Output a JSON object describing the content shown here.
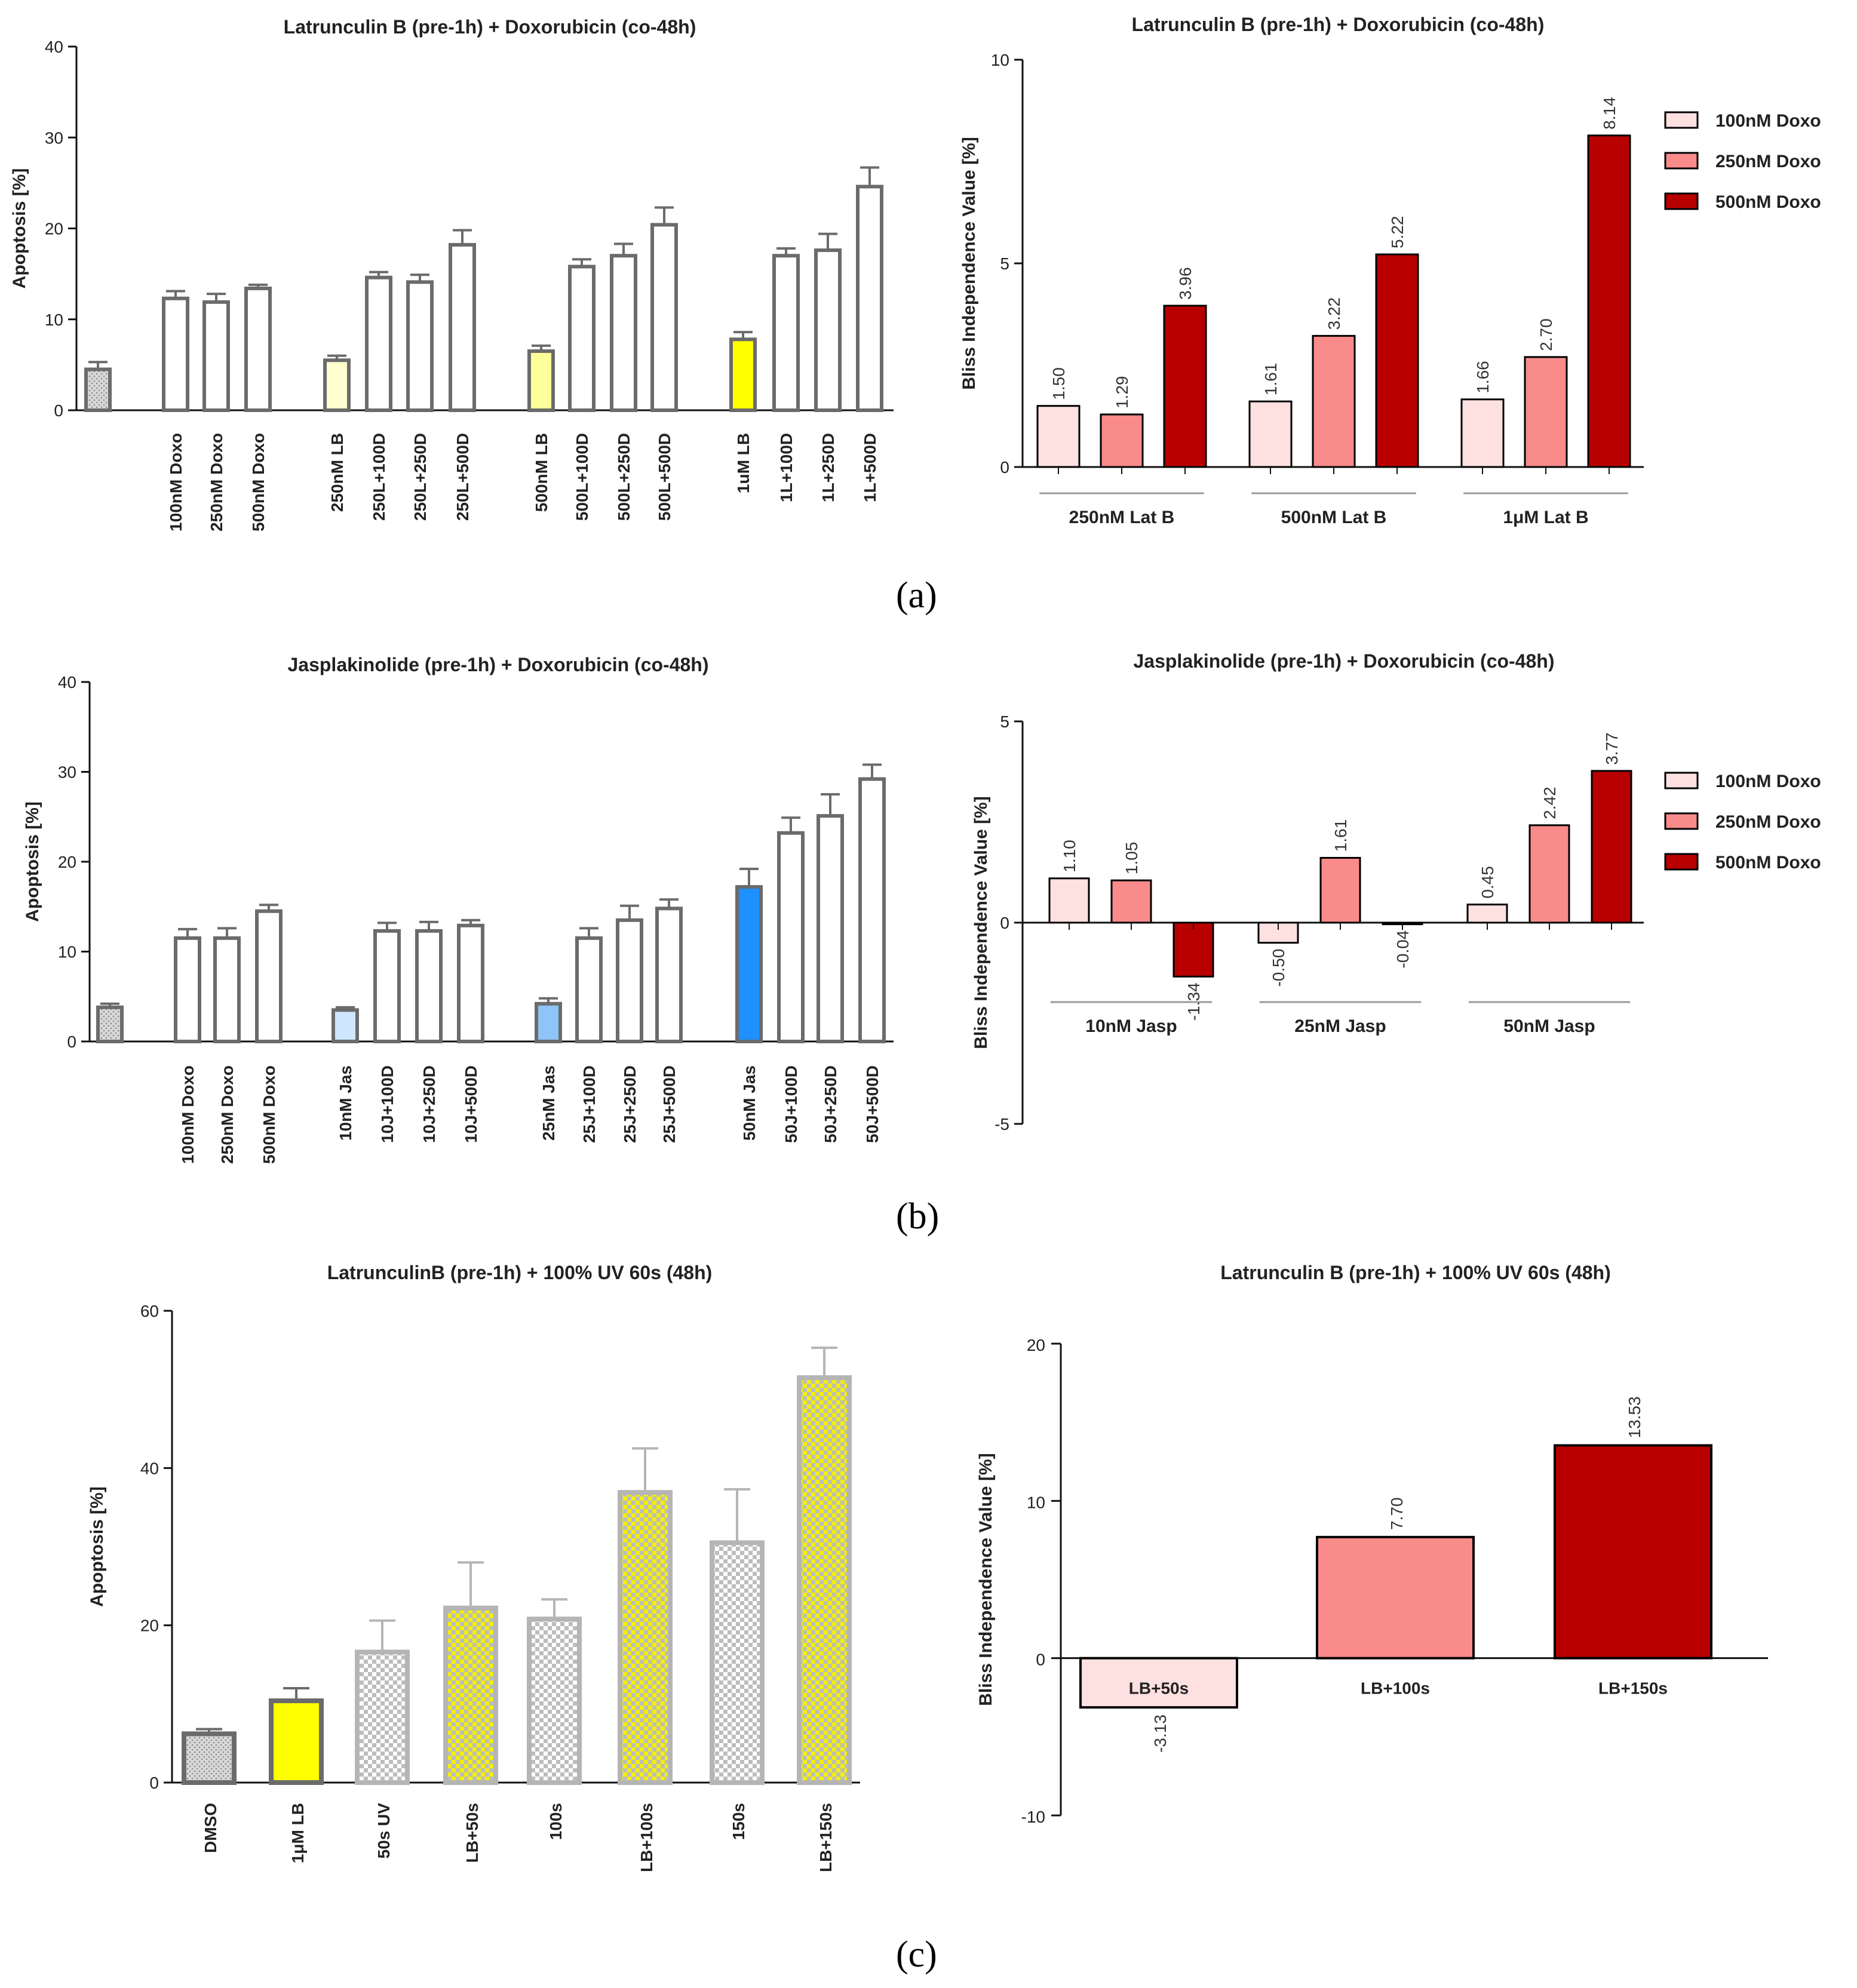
{
  "colors": {
    "doxo100": "#fde0e0",
    "doxo250": "#f98b8b",
    "doxo500": "#b80000",
    "axis": "#111111",
    "bar_outline": "#6b6b6b",
    "lb_250": "#ffffd0",
    "lb_500": "#ffff99",
    "lb_1u": "#ffff00",
    "jas_10": "#cfe6ff",
    "jas_25": "#8ec4f7",
    "jas_50": "#1e90ff"
  },
  "panels": {
    "a": "(a)",
    "b": "(b)",
    "c": "(c)"
  },
  "chart_data": [
    {
      "id": "a-left",
      "type": "bar",
      "title": "Latrunculin B (pre-1h) +  Doxorubicin (co-48h)",
      "ylabel": "Apoptosis [%]",
      "ylim": [
        0,
        40
      ],
      "yticks": [
        0,
        10,
        20,
        30,
        40
      ],
      "categories": [
        "",
        "100nM Doxo",
        "250nM Doxo",
        "500nM Doxo",
        "250nM LB",
        "250L+100D",
        "250L+250D",
        "250L+500D",
        "500nM LB",
        "500L+100D",
        "500L+250D",
        "500L+500D",
        "1uM LB",
        "1L+100D",
        "1L+250D",
        "1L+500D"
      ],
      "values": [
        4.5,
        12.3,
        11.9,
        13.4,
        5.5,
        14.6,
        14.1,
        18.2,
        6.5,
        15.8,
        17.0,
        20.4,
        7.8,
        17.0,
        17.6,
        24.6
      ],
      "errors": [
        0.8,
        0.8,
        0.9,
        0.4,
        0.5,
        0.6,
        0.8,
        1.6,
        0.6,
        0.8,
        1.3,
        1.9,
        0.8,
        0.8,
        1.8,
        2.1
      ]
    },
    {
      "id": "a-right",
      "type": "bar",
      "title": "Latrunculin B (pre-1h) + Doxorubicin (co-48h)",
      "ylabel": "Bliss Independence Value [%]",
      "ylim": [
        0,
        10
      ],
      "yticks": [
        0,
        5,
        10
      ],
      "groups": [
        "250nM Lat B",
        "500nM Lat B",
        "1μM Lat B"
      ],
      "series": [
        {
          "name": "100nM Doxo",
          "values": [
            1.5,
            1.61,
            1.66
          ],
          "labels": [
            "1.50",
            "1.61",
            "1.66"
          ]
        },
        {
          "name": "250nM Doxo",
          "values": [
            1.29,
            3.22,
            2.7
          ],
          "labels": [
            "1.29",
            "3.22",
            "2.70"
          ]
        },
        {
          "name": "500nM Doxo",
          "values": [
            3.96,
            5.22,
            8.14
          ],
          "labels": [
            "3.96",
            "5.22",
            "8.14"
          ]
        }
      ],
      "legend": "right"
    },
    {
      "id": "b-left",
      "type": "bar",
      "title": "Jasplakinolide (pre-1h) +  Doxorubicin (co-48h)",
      "ylabel": "Apoptosis [%]",
      "ylim": [
        0,
        40
      ],
      "yticks": [
        0,
        10,
        20,
        30,
        40
      ],
      "categories": [
        "",
        "100nM Doxo",
        "250nM Doxo",
        "500nM Doxo",
        "10nM Jas",
        "10J+100D",
        "10J+250D",
        "10J+500D",
        "25nM Jas",
        "25J+100D",
        "25J+250D",
        "25J+500D",
        "50nM Jas",
        "50J+100D",
        "50J+250D",
        "50J+500D"
      ],
      "values": [
        3.8,
        11.5,
        11.5,
        14.5,
        3.5,
        12.3,
        12.3,
        12.9,
        4.2,
        11.5,
        13.5,
        14.8,
        17.2,
        23.2,
        25.1,
        29.2
      ],
      "errors": [
        0.4,
        1.0,
        1.1,
        0.7,
        0.3,
        0.9,
        1.0,
        0.6,
        0.6,
        1.1,
        1.6,
        1.0,
        2.0,
        1.7,
        2.4,
        1.6
      ]
    },
    {
      "id": "b-right",
      "type": "bar",
      "title": "Jasplakinolide (pre-1h) + Doxorubicin (co-48h)",
      "ylabel": "Bliss Independence Value [%]",
      "ylim": [
        -5,
        5
      ],
      "yticks": [
        -5,
        0,
        5
      ],
      "groups": [
        "10nM Jasp",
        "25nM Jasp",
        "50nM Jasp"
      ],
      "series": [
        {
          "name": "100nM Doxo",
          "values": [
            1.1,
            -0.5,
            0.45
          ],
          "labels": [
            "1.10",
            "-0.50",
            "0.45"
          ]
        },
        {
          "name": "250nM Doxo",
          "values": [
            1.05,
            1.61,
            2.42
          ],
          "labels": [
            "1.05",
            "1.61",
            "2.42"
          ]
        },
        {
          "name": "500nM Doxo",
          "values": [
            -1.34,
            -0.04,
            3.77
          ],
          "labels": [
            "-1.34",
            "-0.04",
            "3.77"
          ]
        }
      ],
      "legend": "right"
    },
    {
      "id": "c-left",
      "type": "bar",
      "title": "LatrunculinB (pre-1h) + 100% UV 60s (48h)",
      "ylabel": "Apoptosis [%]",
      "ylim": [
        0,
        60
      ],
      "yticks": [
        0,
        20,
        40,
        60
      ],
      "categories": [
        "DMSO",
        "1μM LB",
        "50s UV",
        "LB+50s",
        "100s",
        "LB+100s",
        "150s",
        "LB+150s"
      ],
      "values": [
        6.2,
        10.4,
        16.6,
        22.2,
        20.8,
        36.9,
        30.5,
        51.5
      ],
      "errors": [
        0.6,
        1.6,
        4.0,
        5.8,
        2.5,
        5.6,
        6.8,
        3.8
      ]
    },
    {
      "id": "c-right",
      "type": "bar",
      "title": "Latrunculin B (pre-1h) + 100% UV 60s (48h)",
      "ylabel": "Bliss Independence Value [%]",
      "ylim": [
        -10,
        20
      ],
      "yticks": [
        -10,
        0,
        10,
        20
      ],
      "categories": [
        "LB+50s",
        "LB+100s",
        "LB+150s"
      ],
      "values": [
        -3.13,
        7.7,
        13.53
      ],
      "labels": [
        "-3.13",
        "7.70",
        "13.53"
      ]
    }
  ]
}
